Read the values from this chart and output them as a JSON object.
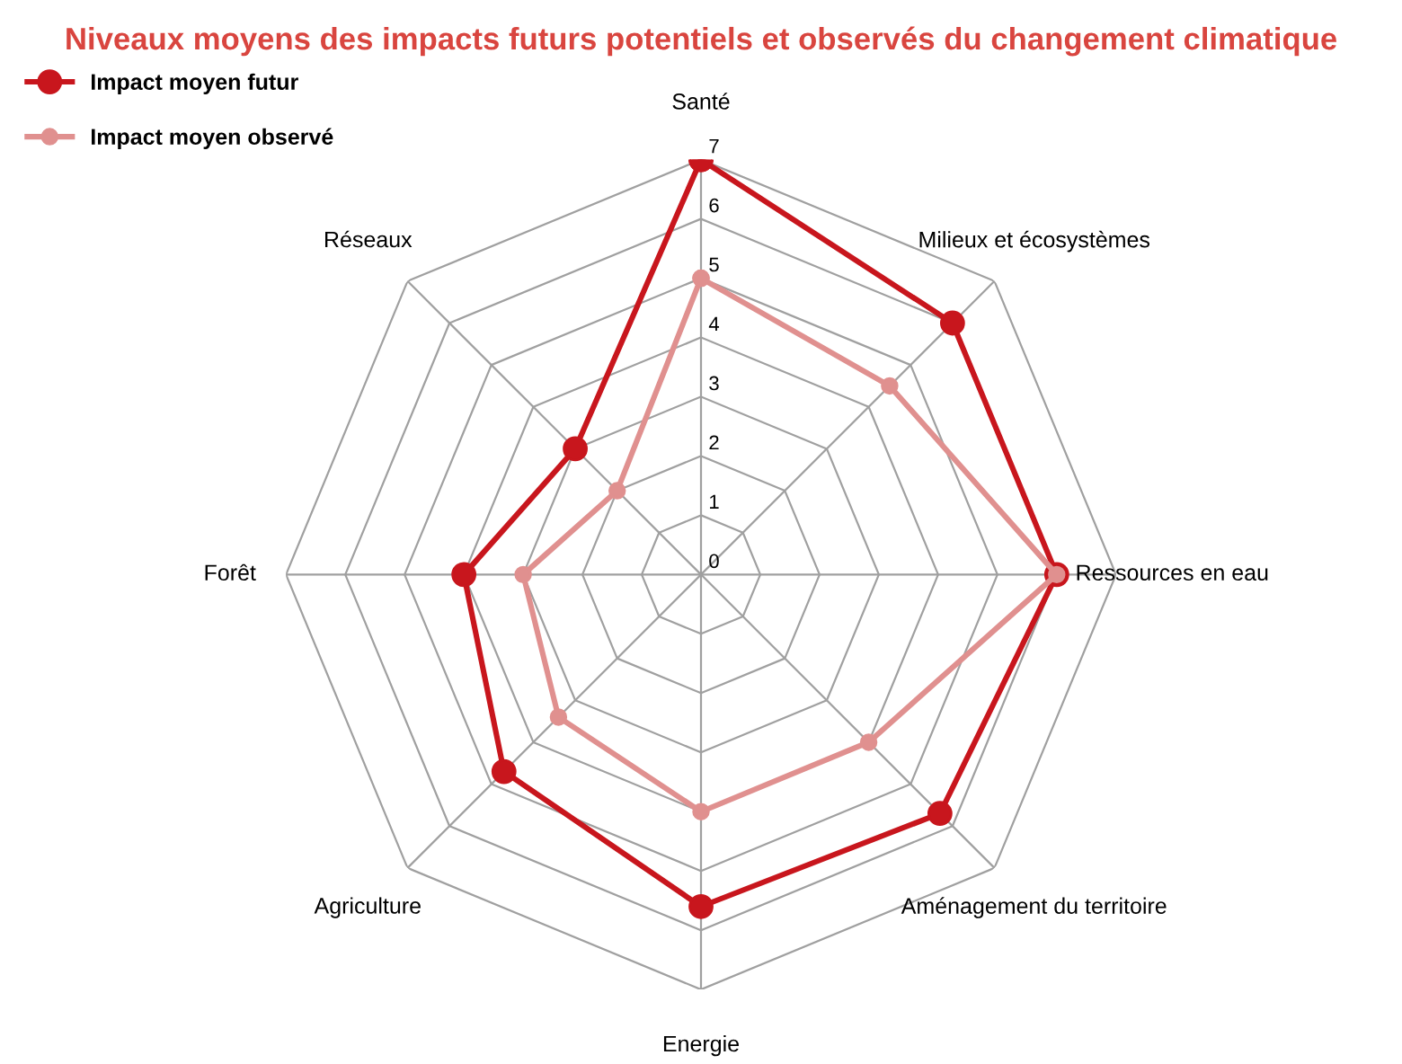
{
  "chart_data": {
    "type": "radar",
    "title": "Niveaux moyens des impacts futurs potentiels et observés du changement climatique",
    "categories": [
      "Santé",
      "Milieux et écosystèmes",
      "Ressources en eau",
      "Aménagement du territoire",
      "Energie",
      "Agriculture",
      "Forêt",
      "Réseaux"
    ],
    "series": [
      {
        "name": "Impact moyen futur",
        "color": "#c8161d",
        "values": [
          7,
          6,
          6,
          5.7,
          5.6,
          4.7,
          4,
          3
        ]
      },
      {
        "name": "Impact moyen observé",
        "color": "#e0908f",
        "values": [
          5,
          4.5,
          6,
          4,
          4,
          3.4,
          3,
          2
        ]
      }
    ],
    "ylim": [
      0,
      7
    ],
    "yticks": [
      0,
      1,
      2,
      3,
      4,
      5,
      6,
      7
    ],
    "grid": true,
    "legend": "top left",
    "marker": "circle",
    "line_style": "solid"
  }
}
